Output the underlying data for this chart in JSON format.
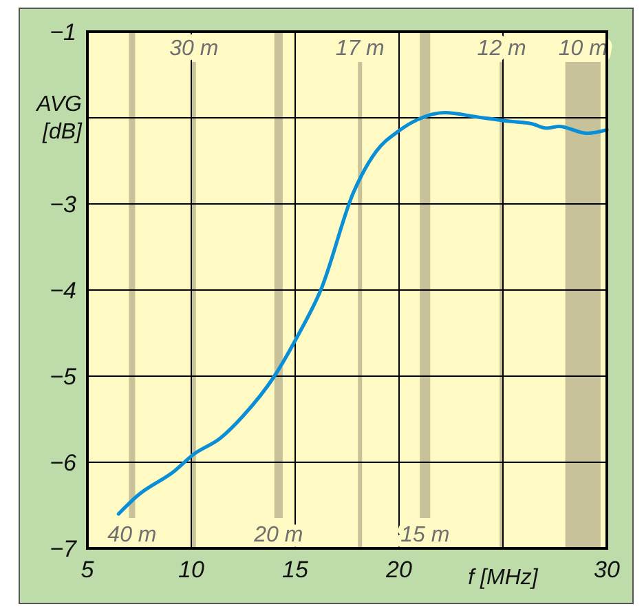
{
  "chart_data": {
    "type": "line",
    "xlabel": "f [MHz]",
    "ylabel": "AVG [dB]",
    "xlim": [
      5,
      30
    ],
    "xticks": [
      5,
      10,
      15,
      20,
      {
        "value": 25,
        "label": null
      },
      30
    ],
    "ylim": [
      -7,
      -1
    ],
    "yticks": [
      -7,
      -6,
      -5,
      -4,
      -3,
      {
        "value": -2,
        "label": null
      },
      -1
    ],
    "grid": true,
    "marker": "none",
    "line_style": "solid",
    "series": [
      {
        "color": "#0a8fd6",
        "x": [
          6.5,
          7.4,
          9.2,
          10.1,
          11.4,
          12.5,
          14.0,
          15.15,
          16.25,
          17.8,
          18.9,
          20.0,
          20.9,
          22.2,
          23.75,
          25.3,
          26.4,
          27.1,
          27.7,
          29.05,
          30.0
        ],
        "values": [
          -6.6,
          -6.39,
          -6.1,
          -5.91,
          -5.72,
          -5.46,
          -5.0,
          -4.52,
          -3.99,
          -2.87,
          -2.39,
          -2.15,
          -2.02,
          -1.94,
          -1.99,
          -2.04,
          -2.07,
          -2.12,
          -2.1,
          -2.18,
          -2.14
        ]
      }
    ],
    "bands": [
      {
        "axis": "x",
        "from": 7.0,
        "to": 7.3,
        "label": "40 m",
        "color": "#c8c29a"
      },
      {
        "axis": "x",
        "from": 10.1,
        "to": 10.15,
        "label": "30 m",
        "color": "#c8c29a"
      },
      {
        "axis": "x",
        "from": 14.0,
        "to": 14.4,
        "label": "20 m",
        "color": "#c8c29a"
      },
      {
        "axis": "x",
        "from": 18.07,
        "to": 18.17,
        "label": "17 m",
        "color": "#c8c29a"
      },
      {
        "axis": "x",
        "from": 21.0,
        "to": 21.5,
        "label": "15 m",
        "color": "#c8c29a"
      },
      {
        "axis": "x",
        "from": 24.89,
        "to": 24.99,
        "label": "12 m",
        "color": "#c8c29a"
      },
      {
        "axis": "x",
        "from": 28.0,
        "to": 29.7,
        "label": "10 m",
        "color": "#c8c29a"
      }
    ]
  }
}
